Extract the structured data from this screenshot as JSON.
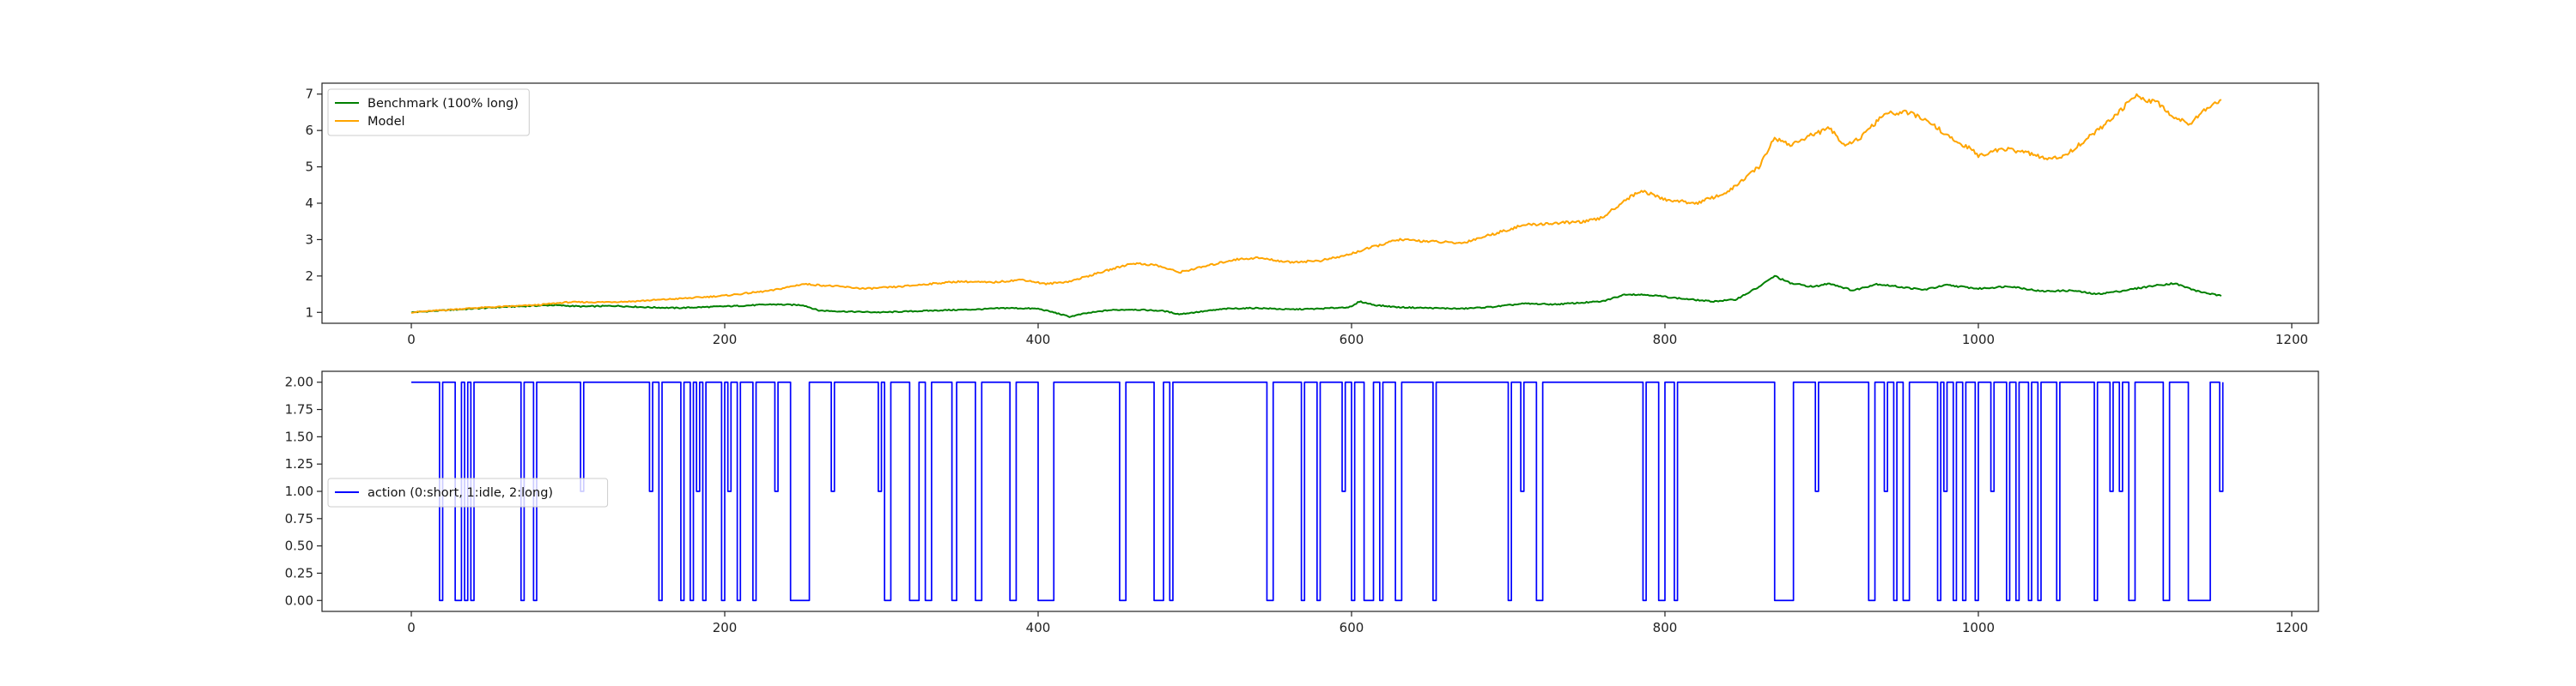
{
  "chart_data": [
    {
      "type": "line",
      "title": "",
      "xlabel": "",
      "ylabel": "",
      "xlim": [
        -57,
        1217
      ],
      "ylim": [
        0.7,
        7.3
      ],
      "xticks": [
        0,
        200,
        400,
        600,
        800,
        1000,
        1200
      ],
      "yticks": [
        1,
        2,
        3,
        4,
        5,
        6,
        7
      ],
      "grid": false,
      "legend_position": "top-left",
      "series": [
        {
          "name": "Benchmark (100% long)",
          "color": "#008000",
          "points": [
            [
              0,
              1.0
            ],
            [
              30,
              1.08
            ],
            [
              60,
              1.15
            ],
            [
              90,
              1.2
            ],
            [
              110,
              1.16
            ],
            [
              130,
              1.18
            ],
            [
              150,
              1.14
            ],
            [
              170,
              1.12
            ],
            [
              190,
              1.15
            ],
            [
              210,
              1.18
            ],
            [
              230,
              1.22
            ],
            [
              250,
              1.2
            ],
            [
              260,
              1.05
            ],
            [
              280,
              1.02
            ],
            [
              300,
              1.0
            ],
            [
              320,
              1.03
            ],
            [
              340,
              1.06
            ],
            [
              360,
              1.08
            ],
            [
              380,
              1.12
            ],
            [
              400,
              1.1
            ],
            [
              410,
              1.0
            ],
            [
              420,
              0.88
            ],
            [
              430,
              0.97
            ],
            [
              445,
              1.06
            ],
            [
              460,
              1.08
            ],
            [
              480,
              1.04
            ],
            [
              490,
              0.95
            ],
            [
              500,
              1.0
            ],
            [
              520,
              1.1
            ],
            [
              540,
              1.12
            ],
            [
              560,
              1.08
            ],
            [
              580,
              1.1
            ],
            [
              600,
              1.15
            ],
            [
              605,
              1.3
            ],
            [
              615,
              1.2
            ],
            [
              630,
              1.14
            ],
            [
              650,
              1.12
            ],
            [
              670,
              1.1
            ],
            [
              690,
              1.15
            ],
            [
              710,
              1.24
            ],
            [
              730,
              1.22
            ],
            [
              760,
              1.3
            ],
            [
              775,
              1.5
            ],
            [
              790,
              1.48
            ],
            [
              810,
              1.38
            ],
            [
              830,
              1.3
            ],
            [
              845,
              1.35
            ],
            [
              860,
              1.7
            ],
            [
              870,
              2.0
            ],
            [
              880,
              1.8
            ],
            [
              895,
              1.7
            ],
            [
              905,
              1.8
            ],
            [
              920,
              1.6
            ],
            [
              935,
              1.78
            ],
            [
              950,
              1.7
            ],
            [
              965,
              1.62
            ],
            [
              980,
              1.75
            ],
            [
              1000,
              1.65
            ],
            [
              1020,
              1.72
            ],
            [
              1040,
              1.58
            ],
            [
              1060,
              1.6
            ],
            [
              1075,
              1.5
            ],
            [
              1090,
              1.58
            ],
            [
              1110,
              1.72
            ],
            [
              1125,
              1.8
            ],
            [
              1140,
              1.58
            ],
            [
              1155,
              1.45
            ]
          ]
        },
        {
          "name": "Model",
          "color": "#FFA500",
          "points": [
            [
              0,
              1.0
            ],
            [
              40,
              1.12
            ],
            [
              80,
              1.2
            ],
            [
              100,
              1.28
            ],
            [
              120,
              1.28
            ],
            [
              140,
              1.3
            ],
            [
              160,
              1.35
            ],
            [
              180,
              1.4
            ],
            [
              200,
              1.46
            ],
            [
              230,
              1.6
            ],
            [
              250,
              1.78
            ],
            [
              270,
              1.72
            ],
            [
              290,
              1.65
            ],
            [
              310,
              1.7
            ],
            [
              330,
              1.78
            ],
            [
              350,
              1.85
            ],
            [
              370,
              1.82
            ],
            [
              390,
              1.9
            ],
            [
              405,
              1.78
            ],
            [
              420,
              1.85
            ],
            [
              440,
              2.1
            ],
            [
              460,
              2.35
            ],
            [
              475,
              2.3
            ],
            [
              490,
              2.1
            ],
            [
              510,
              2.3
            ],
            [
              525,
              2.45
            ],
            [
              540,
              2.5
            ],
            [
              560,
              2.38
            ],
            [
              580,
              2.42
            ],
            [
              595,
              2.55
            ],
            [
              610,
              2.75
            ],
            [
              630,
              3.0
            ],
            [
              650,
              2.95
            ],
            [
              670,
              2.9
            ],
            [
              690,
              3.15
            ],
            [
              710,
              3.4
            ],
            [
              730,
              3.45
            ],
            [
              750,
              3.5
            ],
            [
              760,
              3.6
            ],
            [
              775,
              4.1
            ],
            [
              785,
              4.35
            ],
            [
              800,
              4.1
            ],
            [
              820,
              4.0
            ],
            [
              840,
              4.3
            ],
            [
              860,
              5.0
            ],
            [
              870,
              5.8
            ],
            [
              880,
              5.6
            ],
            [
              895,
              5.9
            ],
            [
              905,
              6.05
            ],
            [
              915,
              5.6
            ],
            [
              925,
              5.8
            ],
            [
              940,
              6.45
            ],
            [
              955,
              6.5
            ],
            [
              970,
              6.2
            ],
            [
              985,
              5.7
            ],
            [
              995,
              5.5
            ],
            [
              1000,
              5.3
            ],
            [
              1015,
              5.5
            ],
            [
              1030,
              5.4
            ],
            [
              1045,
              5.2
            ],
            [
              1055,
              5.3
            ],
            [
              1070,
              5.8
            ],
            [
              1085,
              6.3
            ],
            [
              1100,
              6.95
            ],
            [
              1115,
              6.75
            ],
            [
              1125,
              6.35
            ],
            [
              1135,
              6.2
            ],
            [
              1145,
              6.6
            ],
            [
              1155,
              6.85
            ]
          ]
        }
      ]
    },
    {
      "type": "line",
      "title": "",
      "xlabel": "",
      "ylabel": "",
      "xlim": [
        -57,
        1217
      ],
      "ylim": [
        -0.1,
        2.1
      ],
      "xticks": [
        0,
        200,
        400,
        600,
        800,
        1000,
        1200
      ],
      "yticks": [
        "0.00",
        "0.25",
        "0.50",
        "0.75",
        "1.00",
        "1.25",
        "1.50",
        "1.75",
        "2.00"
      ],
      "grid": false,
      "legend_position": "center-left",
      "series": [
        {
          "name": "action (0:short, 1:idle, 2:long)",
          "color": "#0000FF",
          "steps": [
            [
              0,
              2
            ],
            [
              18,
              0
            ],
            [
              20,
              2
            ],
            [
              28,
              0
            ],
            [
              32,
              2
            ],
            [
              34,
              0
            ],
            [
              36,
              2
            ],
            [
              38,
              0
            ],
            [
              40,
              2
            ],
            [
              70,
              0
            ],
            [
              72,
              2
            ],
            [
              78,
              0
            ],
            [
              80,
              2
            ],
            [
              108,
              1
            ],
            [
              110,
              2
            ],
            [
              152,
              1
            ],
            [
              154,
              2
            ],
            [
              158,
              0
            ],
            [
              160,
              2
            ],
            [
              172,
              0
            ],
            [
              174,
              2
            ],
            [
              178,
              0
            ],
            [
              180,
              2
            ],
            [
              182,
              1
            ],
            [
              184,
              2
            ],
            [
              186,
              0
            ],
            [
              188,
              2
            ],
            [
              198,
              0
            ],
            [
              200,
              2
            ],
            [
              202,
              1
            ],
            [
              204,
              2
            ],
            [
              208,
              0
            ],
            [
              210,
              2
            ],
            [
              218,
              0
            ],
            [
              220,
              2
            ],
            [
              232,
              1
            ],
            [
              234,
              2
            ],
            [
              242,
              0
            ],
            [
              254,
              2
            ],
            [
              268,
              1
            ],
            [
              270,
              2
            ],
            [
              298,
              1
            ],
            [
              300,
              2
            ],
            [
              302,
              0
            ],
            [
              306,
              2
            ],
            [
              318,
              0
            ],
            [
              324,
              2
            ],
            [
              328,
              0
            ],
            [
              332,
              2
            ],
            [
              345,
              0
            ],
            [
              348,
              2
            ],
            [
              360,
              0
            ],
            [
              364,
              2
            ],
            [
              382,
              0
            ],
            [
              386,
              2
            ],
            [
              400,
              0
            ],
            [
              410,
              2
            ],
            [
              452,
              0
            ],
            [
              456,
              2
            ],
            [
              474,
              0
            ],
            [
              480,
              2
            ],
            [
              484,
              0
            ],
            [
              486,
              2
            ],
            [
              546,
              0
            ],
            [
              550,
              2
            ],
            [
              568,
              0
            ],
            [
              570,
              2
            ],
            [
              578,
              0
            ],
            [
              580,
              2
            ],
            [
              594,
              1
            ],
            [
              596,
              2
            ],
            [
              600,
              0
            ],
            [
              602,
              2
            ],
            [
              608,
              0
            ],
            [
              614,
              2
            ],
            [
              618,
              0
            ],
            [
              620,
              2
            ],
            [
              628,
              0
            ],
            [
              632,
              2
            ],
            [
              652,
              0
            ],
            [
              654,
              2
            ],
            [
              700,
              0
            ],
            [
              702,
              2
            ],
            [
              708,
              1
            ],
            [
              710,
              2
            ],
            [
              718,
              0
            ],
            [
              722,
              2
            ],
            [
              786,
              0
            ],
            [
              788,
              2
            ],
            [
              796,
              0
            ],
            [
              800,
              2
            ],
            [
              806,
              0
            ],
            [
              808,
              2
            ],
            [
              870,
              0
            ],
            [
              882,
              2
            ],
            [
              896,
              1
            ],
            [
              898,
              2
            ],
            [
              930,
              0
            ],
            [
              934,
              2
            ],
            [
              940,
              1
            ],
            [
              942,
              2
            ],
            [
              946,
              0
            ],
            [
              948,
              2
            ],
            [
              952,
              0
            ],
            [
              956,
              2
            ],
            [
              974,
              0
            ],
            [
              976,
              2
            ],
            [
              978,
              1
            ],
            [
              980,
              2
            ],
            [
              984,
              0
            ],
            [
              986,
              2
            ],
            [
              990,
              0
            ],
            [
              992,
              2
            ],
            [
              998,
              0
            ],
            [
              1000,
              2
            ],
            [
              1008,
              1
            ],
            [
              1010,
              2
            ],
            [
              1018,
              0
            ],
            [
              1020,
              2
            ],
            [
              1024,
              0
            ],
            [
              1026,
              2
            ],
            [
              1032,
              0
            ],
            [
              1034,
              2
            ],
            [
              1038,
              0
            ],
            [
              1040,
              2
            ],
            [
              1050,
              0
            ],
            [
              1052,
              2
            ],
            [
              1074,
              0
            ],
            [
              1076,
              2
            ],
            [
              1084,
              1
            ],
            [
              1086,
              2
            ],
            [
              1090,
              1
            ],
            [
              1092,
              2
            ],
            [
              1096,
              0
            ],
            [
              1100,
              2
            ],
            [
              1118,
              0
            ],
            [
              1122,
              2
            ],
            [
              1134,
              0
            ],
            [
              1148,
              2
            ],
            [
              1154,
              1
            ],
            [
              1156,
              2
            ]
          ]
        }
      ]
    }
  ]
}
